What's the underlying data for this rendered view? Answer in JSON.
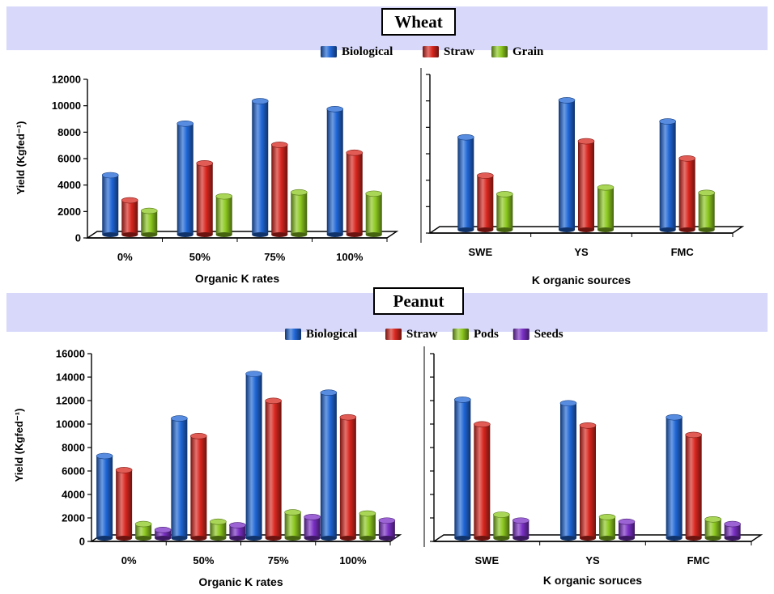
{
  "colors": {
    "Biological": "#1f66d6",
    "Straw": "#d8261e",
    "Grain": "#8cc81f",
    "Pods": "#8cc81f",
    "Seeds": "#7a2fc4",
    "band": "#d8d8fb"
  },
  "chart_data": [
    {
      "type": "bar",
      "panel": "Wheat",
      "title": "Wheat",
      "ylabel": "Yield (Kgfed⁻¹)",
      "ylim": [
        0,
        12000
      ],
      "yticks": [
        0,
        2000,
        4000,
        6000,
        8000,
        10000,
        12000
      ],
      "legend": [
        "Biological",
        "Straw",
        "Grain"
      ],
      "subplots": [
        {
          "xlabel": "Organic K rates",
          "categories": [
            "0%",
            "50%",
            "75%",
            "100%"
          ],
          "series": [
            {
              "name": "Biological",
              "values": [
                4500,
                8400,
                10100,
                9500
              ]
            },
            {
              "name": "Straw",
              "values": [
                2600,
                5400,
                6800,
                6200
              ]
            },
            {
              "name": "Grain",
              "values": [
                1800,
                2900,
                3200,
                3100
              ]
            }
          ]
        },
        {
          "xlabel": "K organic sources",
          "categories": [
            "SWE",
            "YS",
            "FMC"
          ],
          "series": [
            {
              "name": "Biological",
              "values": [
                7000,
                9800,
                8200
              ]
            },
            {
              "name": "Straw",
              "values": [
                4100,
                6700,
                5400
              ]
            },
            {
              "name": "Grain",
              "values": [
                2700,
                3200,
                2800
              ]
            }
          ]
        }
      ]
    },
    {
      "type": "bar",
      "panel": "Peanut",
      "title": "Peanut",
      "ylabel": "Yield (Kgfed⁻¹)",
      "ylim": [
        0,
        16000
      ],
      "yticks": [
        0,
        2000,
        4000,
        6000,
        8000,
        10000,
        12000,
        14000,
        16000
      ],
      "legend": [
        "Biological",
        "Straw",
        "Pods",
        "Seeds"
      ],
      "subplots": [
        {
          "xlabel": "Organic K rates",
          "categories": [
            "0%",
            "50%",
            "75%",
            "100%"
          ],
          "series": [
            {
              "name": "Biological",
              "values": [
                7000,
                10200,
                14000,
                12400
              ]
            },
            {
              "name": "Straw",
              "values": [
                5800,
                8700,
                11700,
                10300
              ]
            },
            {
              "name": "Pods",
              "values": [
                1200,
                1400,
                2200,
                2100
              ]
            },
            {
              "name": "Seeds",
              "values": [
                700,
                1100,
                1800,
                1500
              ]
            }
          ]
        },
        {
          "xlabel": "K organic  soruces",
          "categories": [
            "SWE",
            "YS",
            "FMC"
          ],
          "series": [
            {
              "name": "Biological",
              "values": [
                11800,
                11500,
                10300
              ]
            },
            {
              "name": "Straw",
              "values": [
                9700,
                9600,
                8800
              ]
            },
            {
              "name": "Pods",
              "values": [
                2000,
                1800,
                1600
              ]
            },
            {
              "name": "Seeds",
              "values": [
                1500,
                1400,
                1200
              ]
            }
          ]
        }
      ]
    }
  ]
}
